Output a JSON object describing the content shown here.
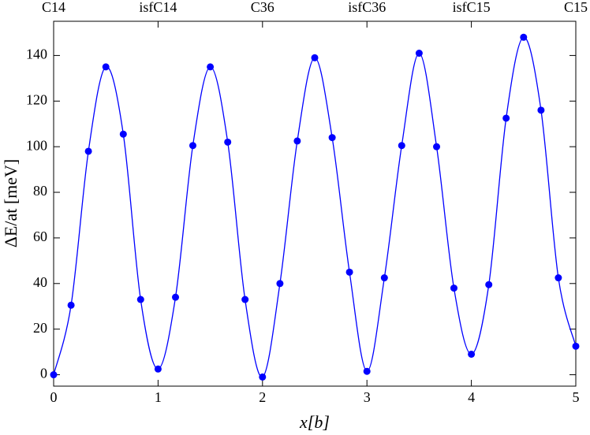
{
  "chart_data": {
    "type": "scatter",
    "xlabel": "x[b]",
    "ylabel": "ΔE/at [meV]",
    "x": [
      0,
      0.167,
      0.333,
      0.5,
      0.667,
      0.833,
      1,
      1.167,
      1.333,
      1.5,
      1.667,
      1.833,
      2,
      2.167,
      2.333,
      2.5,
      2.667,
      2.833,
      3,
      3.167,
      3.333,
      3.5,
      3.667,
      3.833,
      4,
      4.167,
      4.333,
      4.5,
      4.667,
      4.833,
      5
    ],
    "series": [
      {
        "color": "#0000ff",
        "smooth_line": true,
        "values": [
          0,
          30.5,
          98,
          135,
          105.5,
          33,
          2.5,
          34,
          100.5,
          135,
          102,
          33,
          -1,
          40,
          102.5,
          139,
          104,
          45,
          1.5,
          42.5,
          100.5,
          141,
          100,
          38,
          9,
          39.5,
          112.5,
          148,
          116,
          42.5,
          12.5
        ]
      }
    ],
    "xlim": [
      0,
      5
    ],
    "xticks": [
      0,
      1,
      2,
      3,
      4,
      5
    ],
    "x2ticks": [
      {
        "value": 0,
        "label": "C14"
      },
      {
        "value": 1,
        "label": "isfC14"
      },
      {
        "value": 2,
        "label": "C36"
      },
      {
        "value": 3,
        "label": "isfC36"
      },
      {
        "value": 4,
        "label": "isfC15"
      },
      {
        "value": 5,
        "label": "C15"
      }
    ],
    "ylim": [
      -5,
      155
    ],
    "yticks": [
      0,
      20,
      40,
      60,
      80,
      100,
      120,
      140
    ],
    "grid": false
  }
}
